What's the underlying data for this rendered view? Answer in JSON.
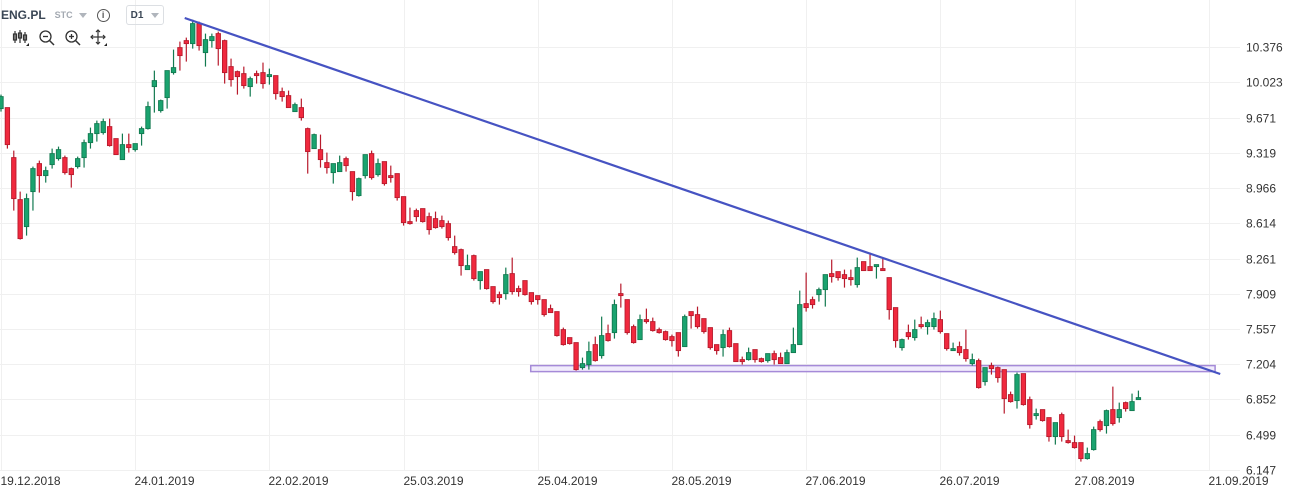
{
  "header": {
    "symbol": "ENG.PL",
    "exchange": "STC",
    "info_glyph": "i",
    "timeframe": "D1"
  },
  "toolbar": {
    "items": [
      "candles-type-icon",
      "zoom-out-icon",
      "zoom-in-icon",
      "pan-move-icon"
    ]
  },
  "colors": {
    "up": "#1aa36f",
    "up_border": "#127a50",
    "down": "#f0293e",
    "down_border": "#b81a2c",
    "trendline": "#4653c2",
    "zone_fill": "#ece6fb",
    "zone_border": "#a58ad8",
    "grid": "#f0f0f0"
  },
  "chart_data": {
    "type": "candlestick",
    "title": "ENG.PL",
    "ylim": [
      6.146,
      10.846
    ],
    "y_ticks": [
      "10.376",
      "10.023",
      "9.671",
      "9.319",
      "8.966",
      "8.614",
      "8.261",
      "7.909",
      "7.557",
      "7.204",
      "6.852",
      "6.499",
      "6.147"
    ],
    "x_labels": [
      {
        "i": 0,
        "label": "19.12.2018"
      },
      {
        "i": 21,
        "label": "24.01.2019"
      },
      {
        "i": 42,
        "label": "22.02.2019"
      },
      {
        "i": 63,
        "label": "25.03.2019"
      },
      {
        "i": 84,
        "label": "25.04.2019"
      },
      {
        "i": 105,
        "label": "28.05.2019"
      },
      {
        "i": 126,
        "label": "27.06.2019"
      },
      {
        "i": 147,
        "label": "26.07.2019"
      },
      {
        "i": 168,
        "label": "27.08.2019"
      },
      {
        "i": 189,
        "label": "21.09.2019"
      }
    ],
    "grid": true,
    "ohlc": [
      [
        9.76,
        9.9,
        9.73,
        9.88
      ],
      [
        9.77,
        9.77,
        9.36,
        9.4
      ],
      [
        9.27,
        9.34,
        8.74,
        8.86
      ],
      [
        8.85,
        8.93,
        8.45,
        8.46
      ],
      [
        8.58,
        8.91,
        8.49,
        8.86
      ],
      [
        8.93,
        9.18,
        8.74,
        9.16
      ],
      [
        9.21,
        9.24,
        8.92,
        9.09
      ],
      [
        9.09,
        9.18,
        9.02,
        9.14
      ],
      [
        9.2,
        9.36,
        9.16,
        9.31
      ],
      [
        9.26,
        9.38,
        9.24,
        9.35
      ],
      [
        9.27,
        9.29,
        9.1,
        9.12
      ],
      [
        9.16,
        9.17,
        8.97,
        9.1
      ],
      [
        9.18,
        9.28,
        9.16,
        9.26
      ],
      [
        9.27,
        9.45,
        9.17,
        9.42
      ],
      [
        9.42,
        9.57,
        9.36,
        9.51
      ],
      [
        9.51,
        9.64,
        9.43,
        9.61
      ],
      [
        9.52,
        9.66,
        9.5,
        9.63
      ],
      [
        9.58,
        9.66,
        9.38,
        9.39
      ],
      [
        9.46,
        9.46,
        9.3,
        9.3
      ],
      [
        9.25,
        9.51,
        9.25,
        9.4
      ],
      [
        9.4,
        9.51,
        9.32,
        9.37
      ],
      [
        9.35,
        9.41,
        9.33,
        9.41
      ],
      [
        9.51,
        9.58,
        9.39,
        9.56
      ],
      [
        9.56,
        9.83,
        9.55,
        9.78
      ],
      [
        9.98,
        10.14,
        9.72,
        10.04
      ],
      [
        9.74,
        9.85,
        9.72,
        9.84
      ],
      [
        9.87,
        10.14,
        9.76,
        10.14
      ],
      [
        10.12,
        10.35,
        10.1,
        10.17
      ],
      [
        10.37,
        10.43,
        10.14,
        10.29
      ],
      [
        10.44,
        10.47,
        10.23,
        10.41
      ],
      [
        10.41,
        10.65,
        10.36,
        10.61
      ],
      [
        10.61,
        10.63,
        10.34,
        10.39
      ],
      [
        10.32,
        10.51,
        10.18,
        10.45
      ],
      [
        10.44,
        10.51,
        10.37,
        10.48
      ],
      [
        10.51,
        10.53,
        10.19,
        10.36
      ],
      [
        10.44,
        10.45,
        10.01,
        10.12
      ],
      [
        10.18,
        10.26,
        9.98,
        10.05
      ],
      [
        10.13,
        10.14,
        9.9,
        10.08
      ],
      [
        10.11,
        10.18,
        9.96,
        9.99
      ],
      [
        9.98,
        10.08,
        9.88,
        10.06
      ],
      [
        10.11,
        10.14,
        10.01,
        10.09
      ],
      [
        10.12,
        10.22,
        9.96,
        10.01
      ],
      [
        10.08,
        10.16,
        10.0,
        10.1
      ],
      [
        10.09,
        10.09,
        9.85,
        9.91
      ],
      [
        9.93,
        9.97,
        9.83,
        9.88
      ],
      [
        9.89,
        9.94,
        9.77,
        9.77
      ],
      [
        9.73,
        9.82,
        9.73,
        9.8
      ],
      [
        9.77,
        9.86,
        9.64,
        9.67
      ],
      [
        9.56,
        9.57,
        9.11,
        9.33
      ],
      [
        9.36,
        9.51,
        9.36,
        9.5
      ],
      [
        9.35,
        9.5,
        9.17,
        9.25
      ],
      [
        9.22,
        9.32,
        9.11,
        9.17
      ],
      [
        9.12,
        9.21,
        9.01,
        9.21
      ],
      [
        9.13,
        9.29,
        9.13,
        9.22
      ],
      [
        9.26,
        9.28,
        9.13,
        9.19
      ],
      [
        9.13,
        9.13,
        8.84,
        8.93
      ],
      [
        8.89,
        9.07,
        8.88,
        9.06
      ],
      [
        9.09,
        9.3,
        9.06,
        9.3
      ],
      [
        9.31,
        9.34,
        9.05,
        9.07
      ],
      [
        9.1,
        9.26,
        9.08,
        9.21
      ],
      [
        9.23,
        9.23,
        8.99,
        9.01
      ],
      [
        9.09,
        9.19,
        9.02,
        9.07
      ],
      [
        9.11,
        9.11,
        8.84,
        8.87
      ],
      [
        8.88,
        8.88,
        8.59,
        8.62
      ],
      [
        8.63,
        8.77,
        8.6,
        8.61
      ],
      [
        8.74,
        8.76,
        8.63,
        8.68
      ],
      [
        8.76,
        8.76,
        8.62,
        8.63
      ],
      [
        8.68,
        8.72,
        8.5,
        8.55
      ],
      [
        8.66,
        8.73,
        8.56,
        8.57
      ],
      [
        8.64,
        8.69,
        8.56,
        8.58
      ],
      [
        8.61,
        8.64,
        8.44,
        8.47
      ],
      [
        8.38,
        8.49,
        8.3,
        8.32
      ],
      [
        8.35,
        8.36,
        8.09,
        8.19
      ],
      [
        8.15,
        8.3,
        8.15,
        8.19
      ],
      [
        8.29,
        8.3,
        8.04,
        8.06
      ],
      [
        8.04,
        8.13,
        7.95,
        8.13
      ],
      [
        8.15,
        8.15,
        7.95,
        7.96
      ],
      [
        7.98,
        7.98,
        7.81,
        7.83
      ],
      [
        7.9,
        7.93,
        7.8,
        7.87
      ],
      [
        7.91,
        8.17,
        7.85,
        8.1
      ],
      [
        8.11,
        8.27,
        7.9,
        7.93
      ],
      [
        7.96,
        7.99,
        7.88,
        7.93
      ],
      [
        8.04,
        8.04,
        7.89,
        7.9
      ],
      [
        7.92,
        7.92,
        7.8,
        7.83
      ],
      [
        7.89,
        7.89,
        7.8,
        7.85
      ],
      [
        7.85,
        7.85,
        7.68,
        7.7
      ],
      [
        7.76,
        7.8,
        7.72,
        7.72
      ],
      [
        7.73,
        7.73,
        7.48,
        7.49
      ],
      [
        7.55,
        7.57,
        7.39,
        7.4
      ],
      [
        7.47,
        7.47,
        7.4,
        7.41
      ],
      [
        7.42,
        7.42,
        7.14,
        7.15
      ],
      [
        7.17,
        7.27,
        7.15,
        7.21
      ],
      [
        7.2,
        7.43,
        7.15,
        7.33
      ],
      [
        7.4,
        7.48,
        7.23,
        7.24
      ],
      [
        7.29,
        7.68,
        7.26,
        7.49
      ],
      [
        7.51,
        7.6,
        7.43,
        7.44
      ],
      [
        7.52,
        7.85,
        7.46,
        7.8
      ],
      [
        7.91,
        8.01,
        7.77,
        7.89
      ],
      [
        7.85,
        7.85,
        7.5,
        7.52
      ],
      [
        7.58,
        7.6,
        7.41,
        7.42
      ],
      [
        7.45,
        7.7,
        7.45,
        7.65
      ],
      [
        7.65,
        7.76,
        7.61,
        7.63
      ],
      [
        7.63,
        7.67,
        7.53,
        7.54
      ],
      [
        7.55,
        7.57,
        7.51,
        7.52
      ],
      [
        7.53,
        7.54,
        7.44,
        7.45
      ],
      [
        7.48,
        7.5,
        7.38,
        7.44
      ],
      [
        7.52,
        7.52,
        7.28,
        7.34
      ],
      [
        7.38,
        7.7,
        7.38,
        7.68
      ],
      [
        7.73,
        7.73,
        7.56,
        7.69
      ],
      [
        7.7,
        7.78,
        7.56,
        7.58
      ],
      [
        7.66,
        7.66,
        7.51,
        7.53
      ],
      [
        7.57,
        7.57,
        7.35,
        7.37
      ],
      [
        7.4,
        7.4,
        7.3,
        7.34
      ],
      [
        7.37,
        7.55,
        7.28,
        7.5
      ],
      [
        7.54,
        7.57,
        7.37,
        7.38
      ],
      [
        7.41,
        7.41,
        7.23,
        7.23
      ],
      [
        7.25,
        7.28,
        7.2,
        7.23
      ],
      [
        7.25,
        7.37,
        7.24,
        7.32
      ],
      [
        7.35,
        7.35,
        7.22,
        7.25
      ],
      [
        7.26,
        7.27,
        7.22,
        7.23
      ],
      [
        7.24,
        7.31,
        7.22,
        7.31
      ],
      [
        7.31,
        7.34,
        7.2,
        7.25
      ],
      [
        7.27,
        7.32,
        7.21,
        7.21
      ],
      [
        7.21,
        7.35,
        7.21,
        7.32
      ],
      [
        7.32,
        7.57,
        7.32,
        7.4
      ],
      [
        7.4,
        7.94,
        7.4,
        7.8
      ],
      [
        7.81,
        8.12,
        7.73,
        7.77
      ],
      [
        7.85,
        7.88,
        7.76,
        7.8
      ],
      [
        7.9,
        7.97,
        7.83,
        7.95
      ],
      [
        7.95,
        8.1,
        7.78,
        8.1
      ],
      [
        8.11,
        8.25,
        8.02,
        8.08
      ],
      [
        8.13,
        8.13,
        8.04,
        8.07
      ],
      [
        8.1,
        8.15,
        7.97,
        8.06
      ],
      [
        8.07,
        8.15,
        7.99,
        8.05
      ],
      [
        8.0,
        8.27,
        7.97,
        8.17
      ],
      [
        8.23,
        8.23,
        8.14,
        8.14
      ],
      [
        8.18,
        8.32,
        8.14,
        8.14
      ],
      [
        8.18,
        8.2,
        8.06,
        8.2
      ],
      [
        8.16,
        8.27,
        8.14,
        8.14
      ],
      [
        8.07,
        8.07,
        7.65,
        7.75
      ],
      [
        7.77,
        7.77,
        7.37,
        7.44
      ],
      [
        7.37,
        7.46,
        7.34,
        7.45
      ],
      [
        7.52,
        7.6,
        7.45,
        7.48
      ],
      [
        7.47,
        7.65,
        7.44,
        7.55
      ],
      [
        7.6,
        7.68,
        7.56,
        7.58
      ],
      [
        7.58,
        7.65,
        7.5,
        7.62
      ],
      [
        7.58,
        7.72,
        7.55,
        7.66
      ],
      [
        7.65,
        7.74,
        7.51,
        7.53
      ],
      [
        7.51,
        7.51,
        7.34,
        7.36
      ],
      [
        7.34,
        7.42,
        7.34,
        7.36
      ],
      [
        7.38,
        7.43,
        7.29,
        7.32
      ],
      [
        7.35,
        7.55,
        7.23,
        7.26
      ],
      [
        7.21,
        7.31,
        7.19,
        7.25
      ],
      [
        7.24,
        7.26,
        6.96,
        6.97
      ],
      [
        7.03,
        7.17,
        6.99,
        7.17
      ],
      [
        7.19,
        7.22,
        7.1,
        7.16
      ],
      [
        7.17,
        7.18,
        7.02,
        7.07
      ],
      [
        7.15,
        7.15,
        6.71,
        6.86
      ],
      [
        6.9,
        6.93,
        6.82,
        6.83
      ],
      [
        6.84,
        7.12,
        6.76,
        7.1
      ],
      [
        7.11,
        7.11,
        6.79,
        6.8
      ],
      [
        6.85,
        6.88,
        6.56,
        6.6
      ],
      [
        6.69,
        6.76,
        6.65,
        6.71
      ],
      [
        6.75,
        6.75,
        6.63,
        6.64
      ],
      [
        6.67,
        6.67,
        6.43,
        6.48
      ],
      [
        6.48,
        6.62,
        6.4,
        6.62
      ],
      [
        6.7,
        6.72,
        6.43,
        6.48
      ],
      [
        6.44,
        6.55,
        6.41,
        6.42
      ],
      [
        6.42,
        6.49,
        6.36,
        6.37
      ],
      [
        6.42,
        6.42,
        6.23,
        6.26
      ],
      [
        6.26,
        6.37,
        6.25,
        6.31
      ],
      [
        6.35,
        6.58,
        6.34,
        6.55
      ],
      [
        6.63,
        6.65,
        6.53,
        6.55
      ],
      [
        6.59,
        6.75,
        6.51,
        6.74
      ],
      [
        6.75,
        6.98,
        6.59,
        6.61
      ],
      [
        6.67,
        6.82,
        6.62,
        6.75
      ],
      [
        6.82,
        6.83,
        6.73,
        6.76
      ],
      [
        6.74,
        6.91,
        6.74,
        6.83
      ],
      [
        6.85,
        6.94,
        6.85,
        6.87
      ]
    ],
    "annotations": {
      "trendline": {
        "from": {
          "i": 28.75,
          "price": 10.666
        },
        "to": {
          "i": 190.8,
          "price": 7.106
        }
      },
      "support_zone": {
        "from_i": 82.9,
        "to_i": 190,
        "price_top": 7.19,
        "price_bottom": 7.13
      }
    }
  }
}
